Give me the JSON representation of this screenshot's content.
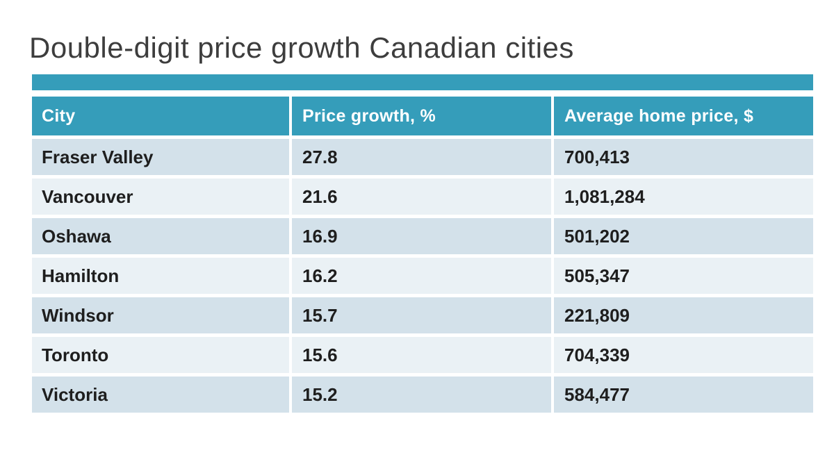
{
  "title": "Double-digit price growth Canadian cities",
  "table": {
    "headers": [
      "City",
      "Price growth, %",
      "Average home price, $"
    ],
    "rows": [
      {
        "city": "Fraser Valley",
        "growth": "27.8",
        "price": "700,413"
      },
      {
        "city": "Vancouver",
        "growth": "21.6",
        "price": "1,081,284"
      },
      {
        "city": "Oshawa",
        "growth": "16.9",
        "price": "501,202"
      },
      {
        "city": "Hamilton",
        "growth": "16.2",
        "price": "505,347"
      },
      {
        "city": "Windsor",
        "growth": "15.7",
        "price": "221,809"
      },
      {
        "city": "Toronto",
        "growth": "15.6",
        "price": "704,339"
      },
      {
        "city": "Victoria",
        "growth": "15.2",
        "price": "584,477"
      }
    ]
  },
  "colors": {
    "accent_teal": "#359dba",
    "row_dark": "#d3e1ea",
    "row_light": "#eaf1f5",
    "title_text": "#3d3d3d",
    "cell_text": "#1e1e1e",
    "header_text": "#ffffff"
  },
  "chart_data": {
    "type": "table",
    "title": "Double-digit price growth Canadian cities",
    "columns": [
      "City",
      "Price growth, %",
      "Average home price, $"
    ],
    "cities": [
      "Fraser Valley",
      "Vancouver",
      "Oshawa",
      "Hamilton",
      "Windsor",
      "Toronto",
      "Victoria"
    ],
    "price_growth_pct": [
      27.8,
      21.6,
      16.9,
      16.2,
      15.7,
      15.6,
      15.2
    ],
    "average_home_price": [
      700413,
      1081284,
      501202,
      505347,
      221809,
      704339,
      584477
    ]
  }
}
